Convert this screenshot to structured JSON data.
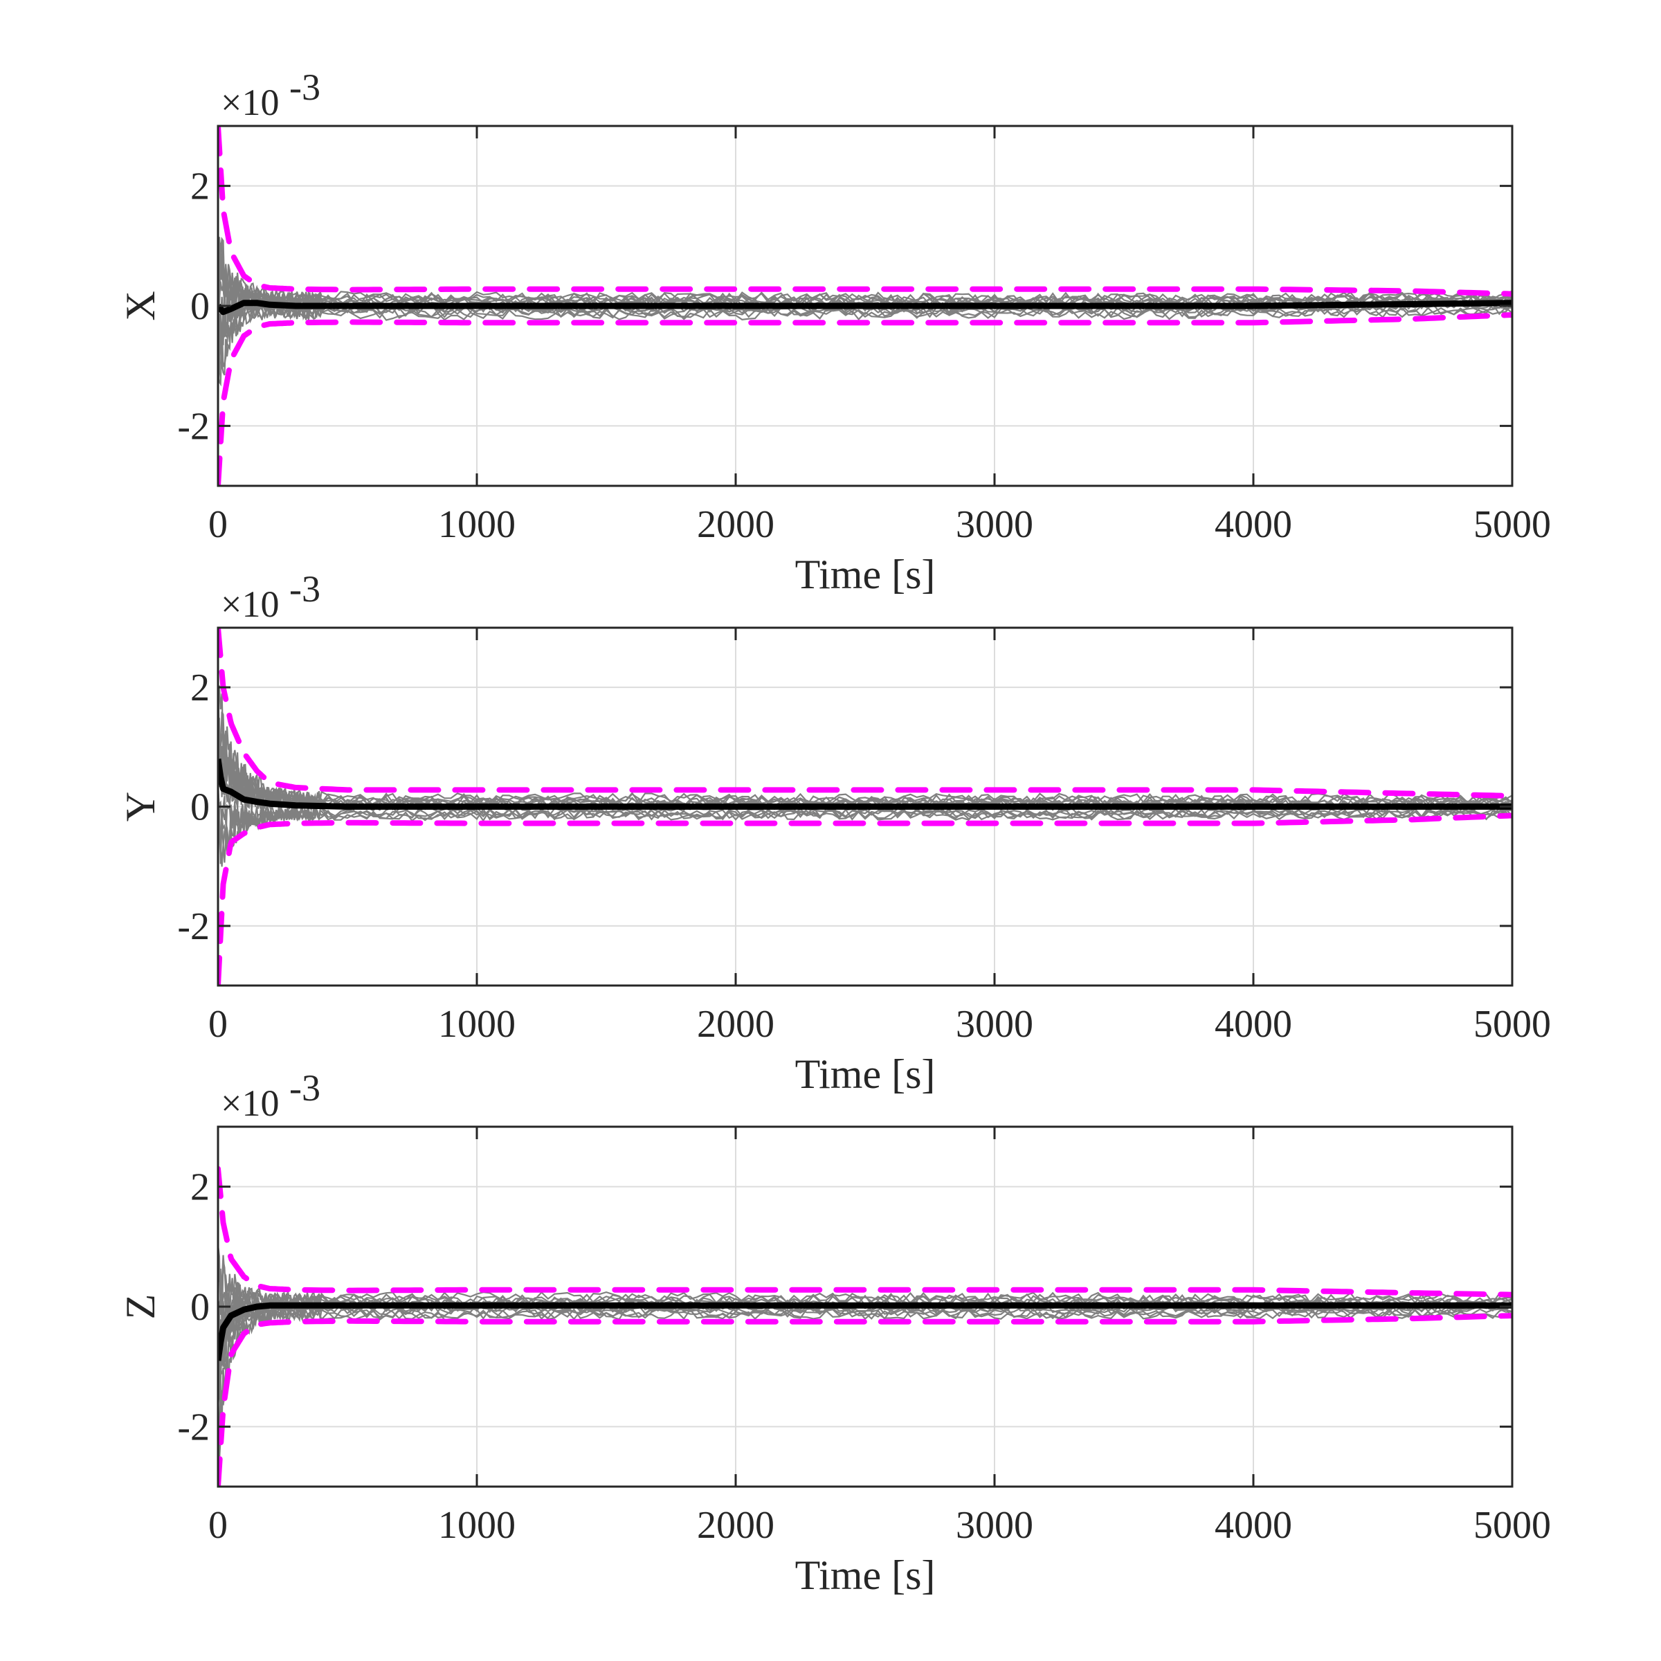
{
  "chart_data": [
    {
      "type": "line",
      "ylabel": "X",
      "xlabel": "Time [s]",
      "exponent_label": "×10",
      "exponent_power": "-3",
      "xlim": [
        0,
        5000
      ],
      "ylim": [
        -3,
        3
      ],
      "y_scale_factor": 0.001,
      "xticks": [
        0,
        1000,
        2000,
        3000,
        4000,
        5000
      ],
      "xtick_labels": [
        "0",
        "1000",
        "2000",
        "3000",
        "4000",
        "5000"
      ],
      "yticks": [
        -2,
        0,
        2
      ],
      "ytick_labels": [
        "-2",
        "0",
        "2"
      ],
      "grid": true,
      "colors": {
        "runs": "#808080",
        "mean": "#000000",
        "bound": "#ff00ff"
      },
      "series": [
        {
          "role": "mean",
          "x": [
            0,
            20,
            50,
            100,
            150,
            200,
            300,
            500,
            1000,
            2000,
            3000,
            4000,
            5000
          ],
          "y": [
            0,
            -0.1,
            -0.05,
            0.05,
            0.05,
            0.02,
            0.0,
            0.0,
            0.0,
            0.0,
            0.0,
            0.0,
            0.05
          ]
        },
        {
          "role": "upper-bound",
          "x": [
            0,
            20,
            50,
            100,
            150,
            200,
            300,
            500,
            1000,
            2000,
            3000,
            4000,
            4600,
            5000
          ],
          "y": [
            3.0,
            1.6,
            0.9,
            0.5,
            0.35,
            0.3,
            0.28,
            0.27,
            0.28,
            0.28,
            0.28,
            0.28,
            0.25,
            0.2
          ]
        },
        {
          "role": "lower-bound",
          "x": [
            0,
            20,
            50,
            100,
            150,
            200,
            300,
            500,
            1000,
            2000,
            3000,
            4000,
            4600,
            5000
          ],
          "y": [
            -3.0,
            -1.6,
            -0.9,
            -0.5,
            -0.35,
            -0.3,
            -0.28,
            -0.27,
            -0.28,
            -0.28,
            -0.28,
            -0.28,
            -0.22,
            -0.15
          ]
        }
      ],
      "spread": {
        "x": [
          0,
          20,
          50,
          100,
          150,
          200,
          300,
          500,
          5000
        ],
        "half_width": [
          1.5,
          1.0,
          0.6,
          0.35,
          0.25,
          0.22,
          0.2,
          0.2,
          0.18
        ]
      }
    },
    {
      "type": "line",
      "ylabel": "Y",
      "xlabel": "Time [s]",
      "exponent_label": "×10",
      "exponent_power": "-3",
      "xlim": [
        0,
        5000
      ],
      "ylim": [
        -3,
        3
      ],
      "y_scale_factor": 0.001,
      "xticks": [
        0,
        1000,
        2000,
        3000,
        4000,
        5000
      ],
      "xtick_labels": [
        "0",
        "1000",
        "2000",
        "3000",
        "4000",
        "5000"
      ],
      "yticks": [
        -2,
        0,
        2
      ],
      "ytick_labels": [
        "-2",
        "0",
        "2"
      ],
      "grid": true,
      "colors": {
        "runs": "#808080",
        "mean": "#000000",
        "bound": "#ff00ff"
      },
      "series": [
        {
          "role": "mean",
          "x": [
            0,
            10,
            20,
            50,
            100,
            150,
            200,
            300,
            500,
            1000,
            2000,
            3000,
            4000,
            5000
          ],
          "y": [
            0.8,
            0.5,
            0.3,
            0.25,
            0.12,
            0.08,
            0.05,
            0.02,
            0.0,
            0.0,
            0.0,
            0.0,
            0.0,
            0.0
          ]
        },
        {
          "role": "upper-bound",
          "x": [
            0,
            20,
            50,
            100,
            150,
            200,
            300,
            500,
            1000,
            2000,
            3000,
            4000,
            4600,
            5000
          ],
          "y": [
            3.0,
            2.0,
            1.4,
            0.9,
            0.6,
            0.4,
            0.32,
            0.28,
            0.28,
            0.28,
            0.28,
            0.28,
            0.22,
            0.18
          ]
        },
        {
          "role": "lower-bound",
          "x": [
            0,
            20,
            50,
            100,
            150,
            200,
            300,
            500,
            1000,
            2000,
            3000,
            4000,
            4600,
            5000
          ],
          "y": [
            -3.0,
            -1.3,
            -0.6,
            -0.45,
            -0.35,
            -0.3,
            -0.28,
            -0.27,
            -0.28,
            -0.28,
            -0.28,
            -0.28,
            -0.22,
            -0.15
          ]
        }
      ],
      "spread": {
        "x": [
          0,
          20,
          50,
          100,
          150,
          200,
          300,
          500,
          5000
        ],
        "half_width": [
          1.6,
          1.2,
          0.8,
          0.55,
          0.4,
          0.3,
          0.22,
          0.2,
          0.18
        ]
      }
    },
    {
      "type": "line",
      "ylabel": "Z",
      "xlabel": "Time [s]",
      "exponent_label": "×10",
      "exponent_power": "-3",
      "xlim": [
        0,
        5000
      ],
      "ylim": [
        -3,
        3
      ],
      "y_scale_factor": 0.001,
      "xticks": [
        0,
        1000,
        2000,
        3000,
        4000,
        5000
      ],
      "xtick_labels": [
        "0",
        "1000",
        "2000",
        "3000",
        "4000",
        "5000"
      ],
      "yticks": [
        -2,
        0,
        2
      ],
      "ytick_labels": [
        "-2",
        "0",
        "2"
      ],
      "grid": true,
      "colors": {
        "runs": "#808080",
        "mean": "#000000",
        "bound": "#ff00ff"
      },
      "series": [
        {
          "role": "mean",
          "x": [
            0,
            10,
            20,
            50,
            100,
            150,
            200,
            300,
            500,
            1000,
            2000,
            3000,
            4000,
            5000
          ],
          "y": [
            -0.9,
            -0.6,
            -0.35,
            -0.15,
            -0.05,
            0.0,
            0.02,
            0.02,
            0.02,
            0.02,
            0.02,
            0.02,
            0.02,
            0.02
          ]
        },
        {
          "role": "upper-bound",
          "x": [
            0,
            20,
            50,
            100,
            150,
            200,
            300,
            500,
            1000,
            2000,
            3000,
            4000,
            4600,
            5000
          ],
          "y": [
            2.3,
            1.4,
            0.8,
            0.5,
            0.35,
            0.3,
            0.28,
            0.27,
            0.28,
            0.28,
            0.28,
            0.28,
            0.23,
            0.2
          ]
        },
        {
          "role": "lower-bound",
          "x": [
            0,
            20,
            50,
            100,
            150,
            200,
            300,
            500,
            1000,
            2000,
            3000,
            4000,
            4600,
            5000
          ],
          "y": [
            -3.0,
            -1.7,
            -0.8,
            -0.45,
            -0.3,
            -0.27,
            -0.25,
            -0.24,
            -0.25,
            -0.25,
            -0.25,
            -0.25,
            -0.2,
            -0.15
          ]
        }
      ],
      "spread": {
        "x": [
          0,
          20,
          50,
          100,
          150,
          200,
          300,
          500,
          5000
        ],
        "half_width": [
          1.8,
          1.2,
          0.7,
          0.4,
          0.28,
          0.22,
          0.2,
          0.2,
          0.18
        ]
      }
    }
  ]
}
